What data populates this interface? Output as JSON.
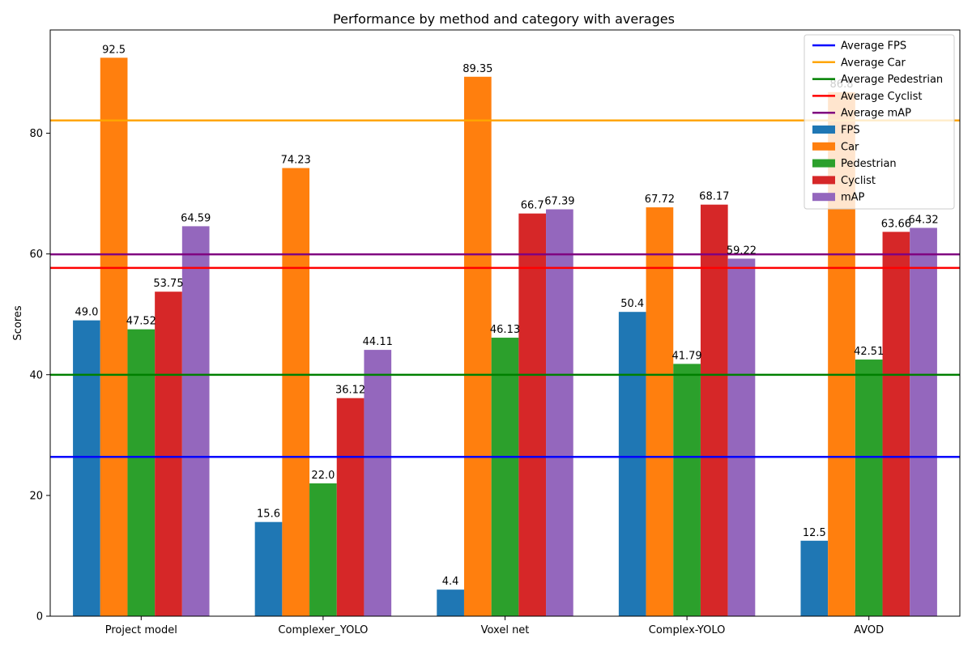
{
  "chart_data": {
    "type": "bar",
    "title": "Performance by method and category with averages",
    "xlabel": "",
    "ylabel": "Scores",
    "ylim": [
      0,
      97.1
    ],
    "yticks": [
      0,
      20,
      40,
      60,
      80
    ],
    "grid": false,
    "legend_position": "top-right",
    "categories": [
      "Project model",
      "Complexer_YOLO",
      "Voxel net",
      "Complex-YOLO",
      "AVOD"
    ],
    "series": [
      {
        "name": "FPS",
        "color": "#1f77b4",
        "values": [
          49.0,
          15.6,
          4.4,
          50.4,
          12.5
        ],
        "labels": [
          "49.0",
          "15.6",
          "4.4",
          "50.4",
          "12.5"
        ]
      },
      {
        "name": "Car",
        "color": "#ff7f0e",
        "values": [
          92.5,
          74.23,
          89.35,
          67.72,
          86.8
        ],
        "labels": [
          "92.5",
          "74.23",
          "89.35",
          "67.72",
          "86.8"
        ]
      },
      {
        "name": "Pedestrian",
        "color": "#2ca02c",
        "values": [
          47.52,
          22.0,
          46.13,
          41.79,
          42.51
        ],
        "labels": [
          "47.52",
          "22.0",
          "46.13",
          "41.79",
          "42.51"
        ]
      },
      {
        "name": "Cyclist",
        "color": "#d62728",
        "values": [
          53.75,
          36.12,
          66.7,
          68.17,
          63.66
        ],
        "labels": [
          "53.75",
          "36.12",
          "66.7",
          "68.17",
          "63.66"
        ]
      },
      {
        "name": "mAP",
        "color": "#9467bd",
        "values": [
          64.59,
          44.11,
          67.39,
          59.22,
          64.32
        ],
        "labels": [
          "64.59",
          "44.11",
          "67.39",
          "59.22",
          "64.32"
        ]
      }
    ],
    "average_lines": [
      {
        "name": "Average FPS",
        "color": "#0000ff",
        "value": 26.38
      },
      {
        "name": "Average Car",
        "color": "#ffa500",
        "value": 82.12
      },
      {
        "name": "Average Pedestrian",
        "color": "#008000",
        "value": 39.99
      },
      {
        "name": "Average Cyclist",
        "color": "#ff0000",
        "value": 57.68
      },
      {
        "name": "Average mAP",
        "color": "#800080",
        "value": 59.93
      }
    ]
  }
}
